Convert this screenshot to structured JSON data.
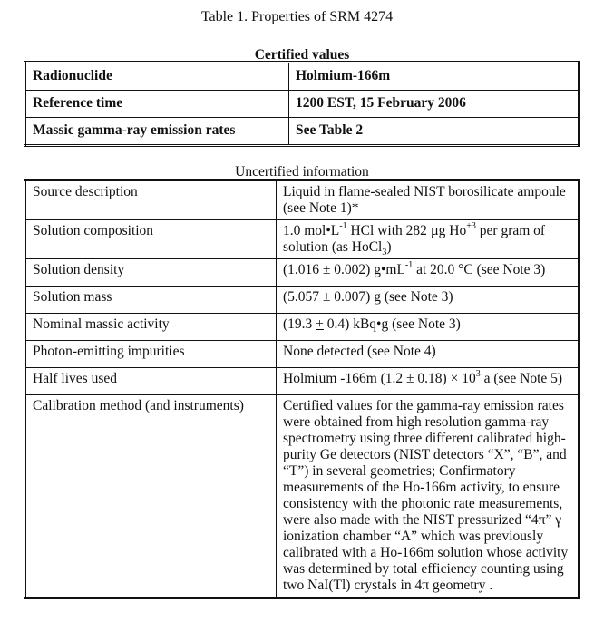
{
  "title": "Table 1.  Properties of SRM 4274",
  "certified": {
    "caption": "Certified values",
    "rows": [
      {
        "k": "Radionuclide",
        "v": "Holmium-166m"
      },
      {
        "k": "Reference time",
        "v": "1200 EST, 15 February 2006"
      },
      {
        "k": "Massic gamma-ray emission rates",
        "v": "See Table 2"
      }
    ]
  },
  "uncertified": {
    "caption": "Uncertified information",
    "rows": [
      {
        "k": "Source description",
        "v": "Liquid in flame-sealed NIST borosilicate ampoule (see Note 1)*"
      },
      {
        "k": "Solution composition",
        "v_a": "1.0 mol•L",
        "v_sup1": "-1",
        "v_b": " HCl with 282 µg Ho",
        "v_sup2": "+3",
        "v_c": " per gram of solution (as HoCl",
        "v_sub": "3",
        "v_d": ")"
      },
      {
        "k": "Solution density",
        "v_a": "(1.016 ± 0.002) g•mL",
        "v_sup": "-1",
        "v_b": " at 20.0 °C  (see Note 3)"
      },
      {
        "k": "Solution mass",
        "v": "(5.057 ± 0.007) g  (see Note 3)"
      },
      {
        "k": "Nominal massic activity",
        "v_a": "(19.3 ",
        "v_pm": "+",
        "v_b": " 0.4) kBq•g  (see Note 3)"
      },
      {
        "k": "Photon-emitting impurities",
        "v": "None detected (see Note 4)"
      },
      {
        "k": "Half lives used",
        "v_a": "Holmium -166m (1.2 ± 0.18) × 10",
        "v_sup": "3",
        "v_b": " a (see Note 5)"
      },
      {
        "k": "Calibration method (and instruments)",
        "v": "Certified values for the gamma-ray emission rates were obtained from high resolution gamma-ray spectrometry using three different calibrated high-purity Ge detectors (NIST detectors “X”, “B”, and “T”) in several geometries; Confirmatory measurements of the Ho-166m activity, to ensure consistency with the photonic rate measurements, were also made with the NIST pressurized “4π” γ ionization chamber “A” which was previously calibrated with a Ho-166m solution whose activity was determined by total efficiency counting using two NaI(Tl) crystals in 4π geometry ."
      }
    ]
  }
}
